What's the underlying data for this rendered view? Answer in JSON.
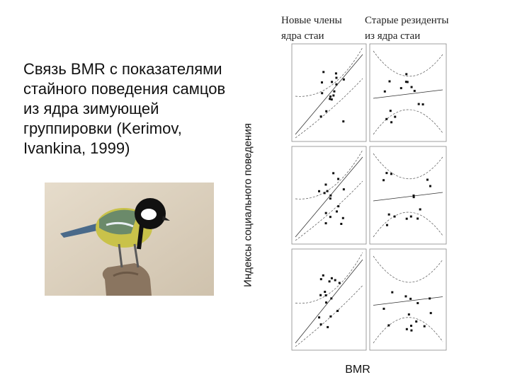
{
  "title_lines": [
    "Связь BMR с показателями",
    "стайного поведения самцов",
    "из ядра зимующей",
    "группировки (Kerimov,",
    "Ivankina, 1999)"
  ],
  "y_axis_label": "Индексы социального поведения",
  "column_headers": [
    [
      "Новые члены",
      "ядра стаи"
    ],
    [
      "Старые резиденты",
      "из ядра стаи"
    ]
  ],
  "x_axis_label": "BMR"
}
